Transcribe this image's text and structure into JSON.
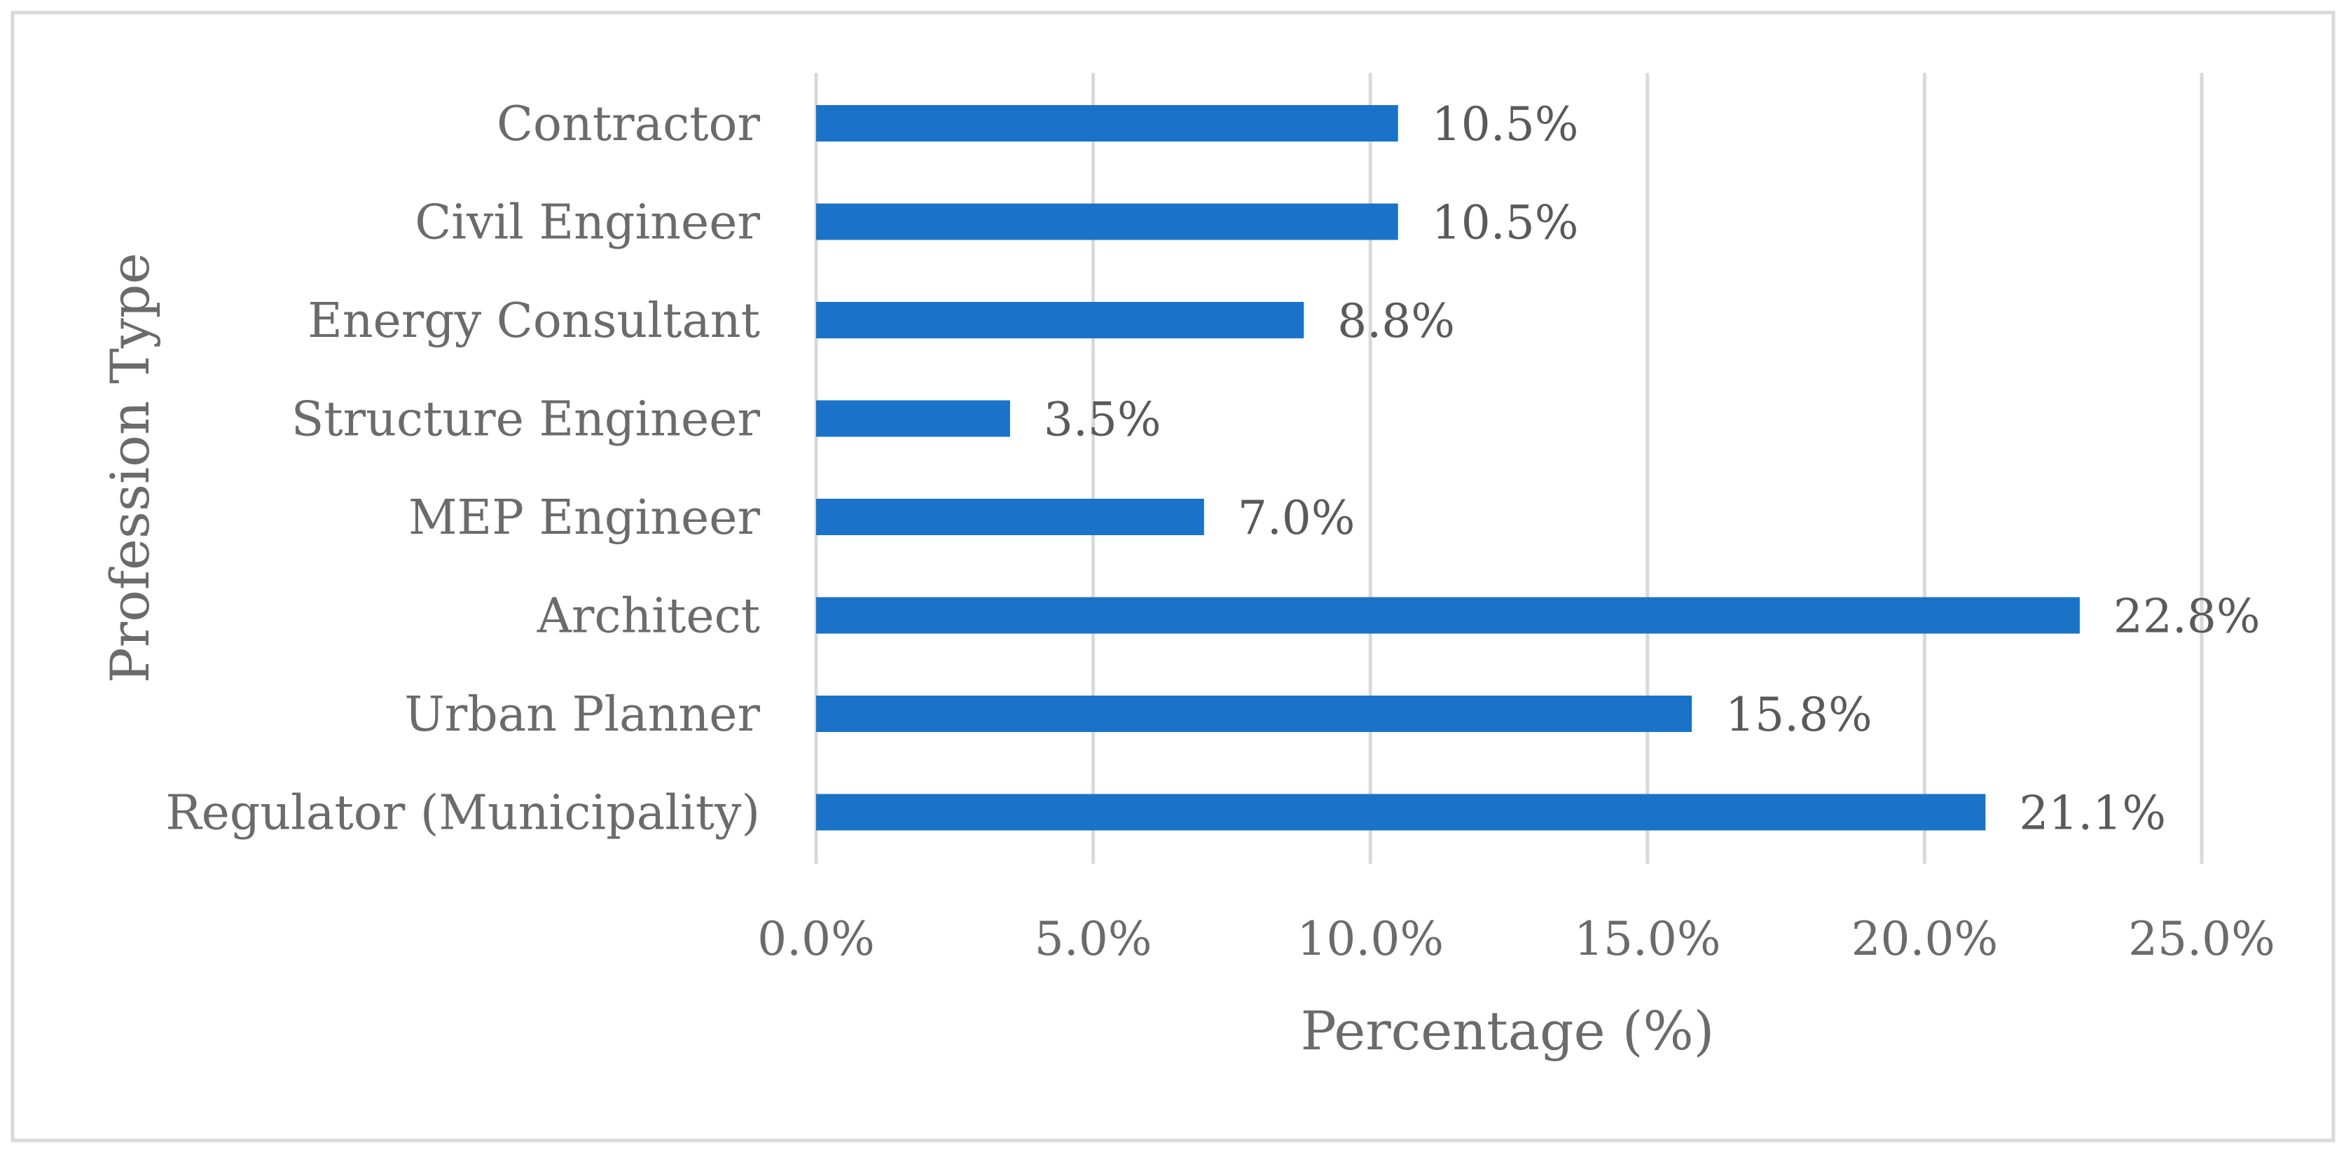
{
  "chart_data": {
    "type": "bar",
    "orientation": "horizontal",
    "categories": [
      "Contractor",
      "Civil Engineer",
      "Energy Consultant",
      "Structure Engineer",
      "MEP Engineer",
      "Architect",
      "Urban Planner",
      "Regulator (Municipality)"
    ],
    "values": [
      10.5,
      10.5,
      8.8,
      3.5,
      7.0,
      22.8,
      15.8,
      21.1
    ],
    "data_labels": [
      "10.5%",
      "10.5%",
      "8.8%",
      "3.5%",
      "7.0%",
      "22.8%",
      "15.8%",
      "21.1%"
    ],
    "xlabel": "Percentage (%)",
    "ylabel": "Profession Type",
    "xlim": [
      0,
      25
    ],
    "xticks": [
      0,
      5,
      10,
      15,
      20,
      25
    ],
    "xtick_labels": [
      "0.0%",
      "5.0%",
      "10.0%",
      "15.0%",
      "20.0%",
      "25.0%"
    ],
    "grid": "vertical",
    "legend": "none",
    "bar_color": "#1a73c8",
    "grid_color": "#d9d9d9",
    "text_color": "#6b6b6b",
    "border_color": "#d9d9d9"
  }
}
